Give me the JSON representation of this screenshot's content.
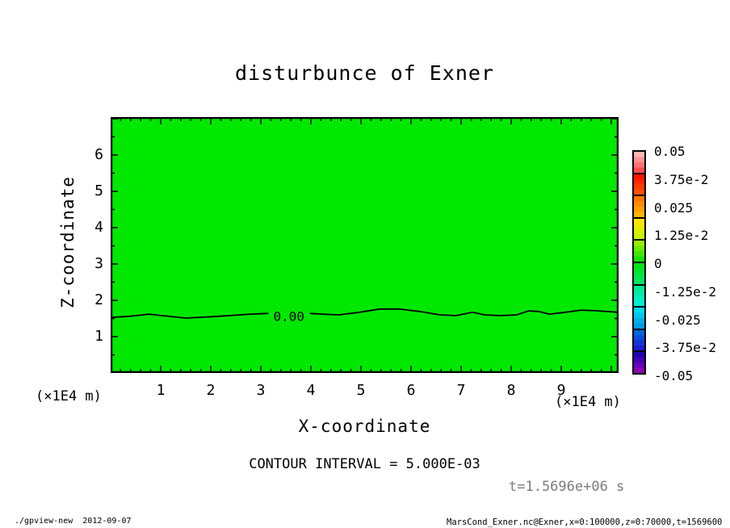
{
  "chart_data": {
    "type": "contour-tone",
    "title": "disturbunce of Exner",
    "xlabel": "X-coordinate",
    "ylabel": "Z-coordinate",
    "x_unit": "(×1E4 m)",
    "y_unit": "(×1E4 m)",
    "xlim": [
      0,
      10.145
    ],
    "ylim": [
      0,
      7.044
    ],
    "x_major_ticks": [
      1,
      2,
      3,
      4,
      5,
      6,
      7,
      8,
      9
    ],
    "x_minor_step": 0.2,
    "y_major_ticks": [
      1,
      2,
      3,
      4,
      5,
      6
    ],
    "y_minor_step": 0.5,
    "grid": false,
    "fill_color": "#00E800",
    "contour_level_label": {
      "text": "0.00",
      "x": 3.56,
      "z": 1.556
    },
    "contour_segments": [
      [
        [
          0,
          1.53
        ],
        [
          0.37,
          1.56
        ],
        [
          0.77,
          1.62
        ],
        [
          1.02,
          1.58
        ],
        [
          1.5,
          1.51
        ],
        [
          2.15,
          1.56
        ],
        [
          2.79,
          1.62
        ],
        [
          3.15,
          1.64
        ]
      ],
      [
        [
          3.98,
          1.64
        ],
        [
          4.24,
          1.62
        ],
        [
          4.56,
          1.6
        ],
        [
          4.97,
          1.67
        ],
        [
          5.37,
          1.76
        ],
        [
          5.77,
          1.76
        ],
        [
          6.18,
          1.69
        ],
        [
          6.58,
          1.6
        ],
        [
          6.9,
          1.58
        ],
        [
          7.23,
          1.67
        ],
        [
          7.47,
          1.6
        ],
        [
          7.79,
          1.58
        ],
        [
          8.11,
          1.6
        ],
        [
          8.35,
          1.71
        ],
        [
          8.56,
          1.69
        ],
        [
          8.76,
          1.62
        ],
        [
          9.08,
          1.67
        ],
        [
          9.4,
          1.73
        ],
        [
          9.73,
          1.71
        ],
        [
          10.14,
          1.67
        ]
      ]
    ],
    "colorbar": {
      "labels": [
        {
          "text": "0.05",
          "value": 0.05
        },
        {
          "text": "3.75e-2",
          "value": 0.0375
        },
        {
          "text": "0.025",
          "value": 0.025
        },
        {
          "text": "1.25e-2",
          "value": 0.0125
        },
        {
          "text": "0",
          "value": 0
        },
        {
          "text": "-1.25e-2",
          "value": -0.0125
        },
        {
          "text": "-0.025",
          "value": -0.025
        },
        {
          "text": "-3.75e-2",
          "value": -0.0375
        },
        {
          "text": "-0.05",
          "value": -0.05
        }
      ],
      "segments": [
        {
          "from": "#ffb4b4",
          "to": "#ff5050"
        },
        {
          "from": "#ff1400",
          "to": "#ff5000"
        },
        {
          "from": "#ff7800",
          "to": "#ffb400"
        },
        {
          "from": "#ffe600",
          "to": "#c8f000"
        },
        {
          "from": "#96ee00",
          "to": "#14e400"
        },
        {
          "from": "#00e414",
          "to": "#00e664"
        },
        {
          "from": "#00ea96",
          "to": "#00eed2"
        },
        {
          "from": "#00dcee",
          "to": "#009ce6"
        },
        {
          "from": "#0064dc",
          "to": "#1e1ed2"
        },
        {
          "from": "#1e00b4",
          "to": "#8c00b4"
        }
      ]
    }
  },
  "annotations": {
    "contour_interval": "CONTOUR INTERVAL = 5.000E-03",
    "time": "t=1.5696e+06 s"
  },
  "footer": {
    "command": "./gpview-new  2012-09-07",
    "source": "MarsCond_Exner.nc@Exner,x=0:100000,z=0:70000,t=1569600"
  }
}
